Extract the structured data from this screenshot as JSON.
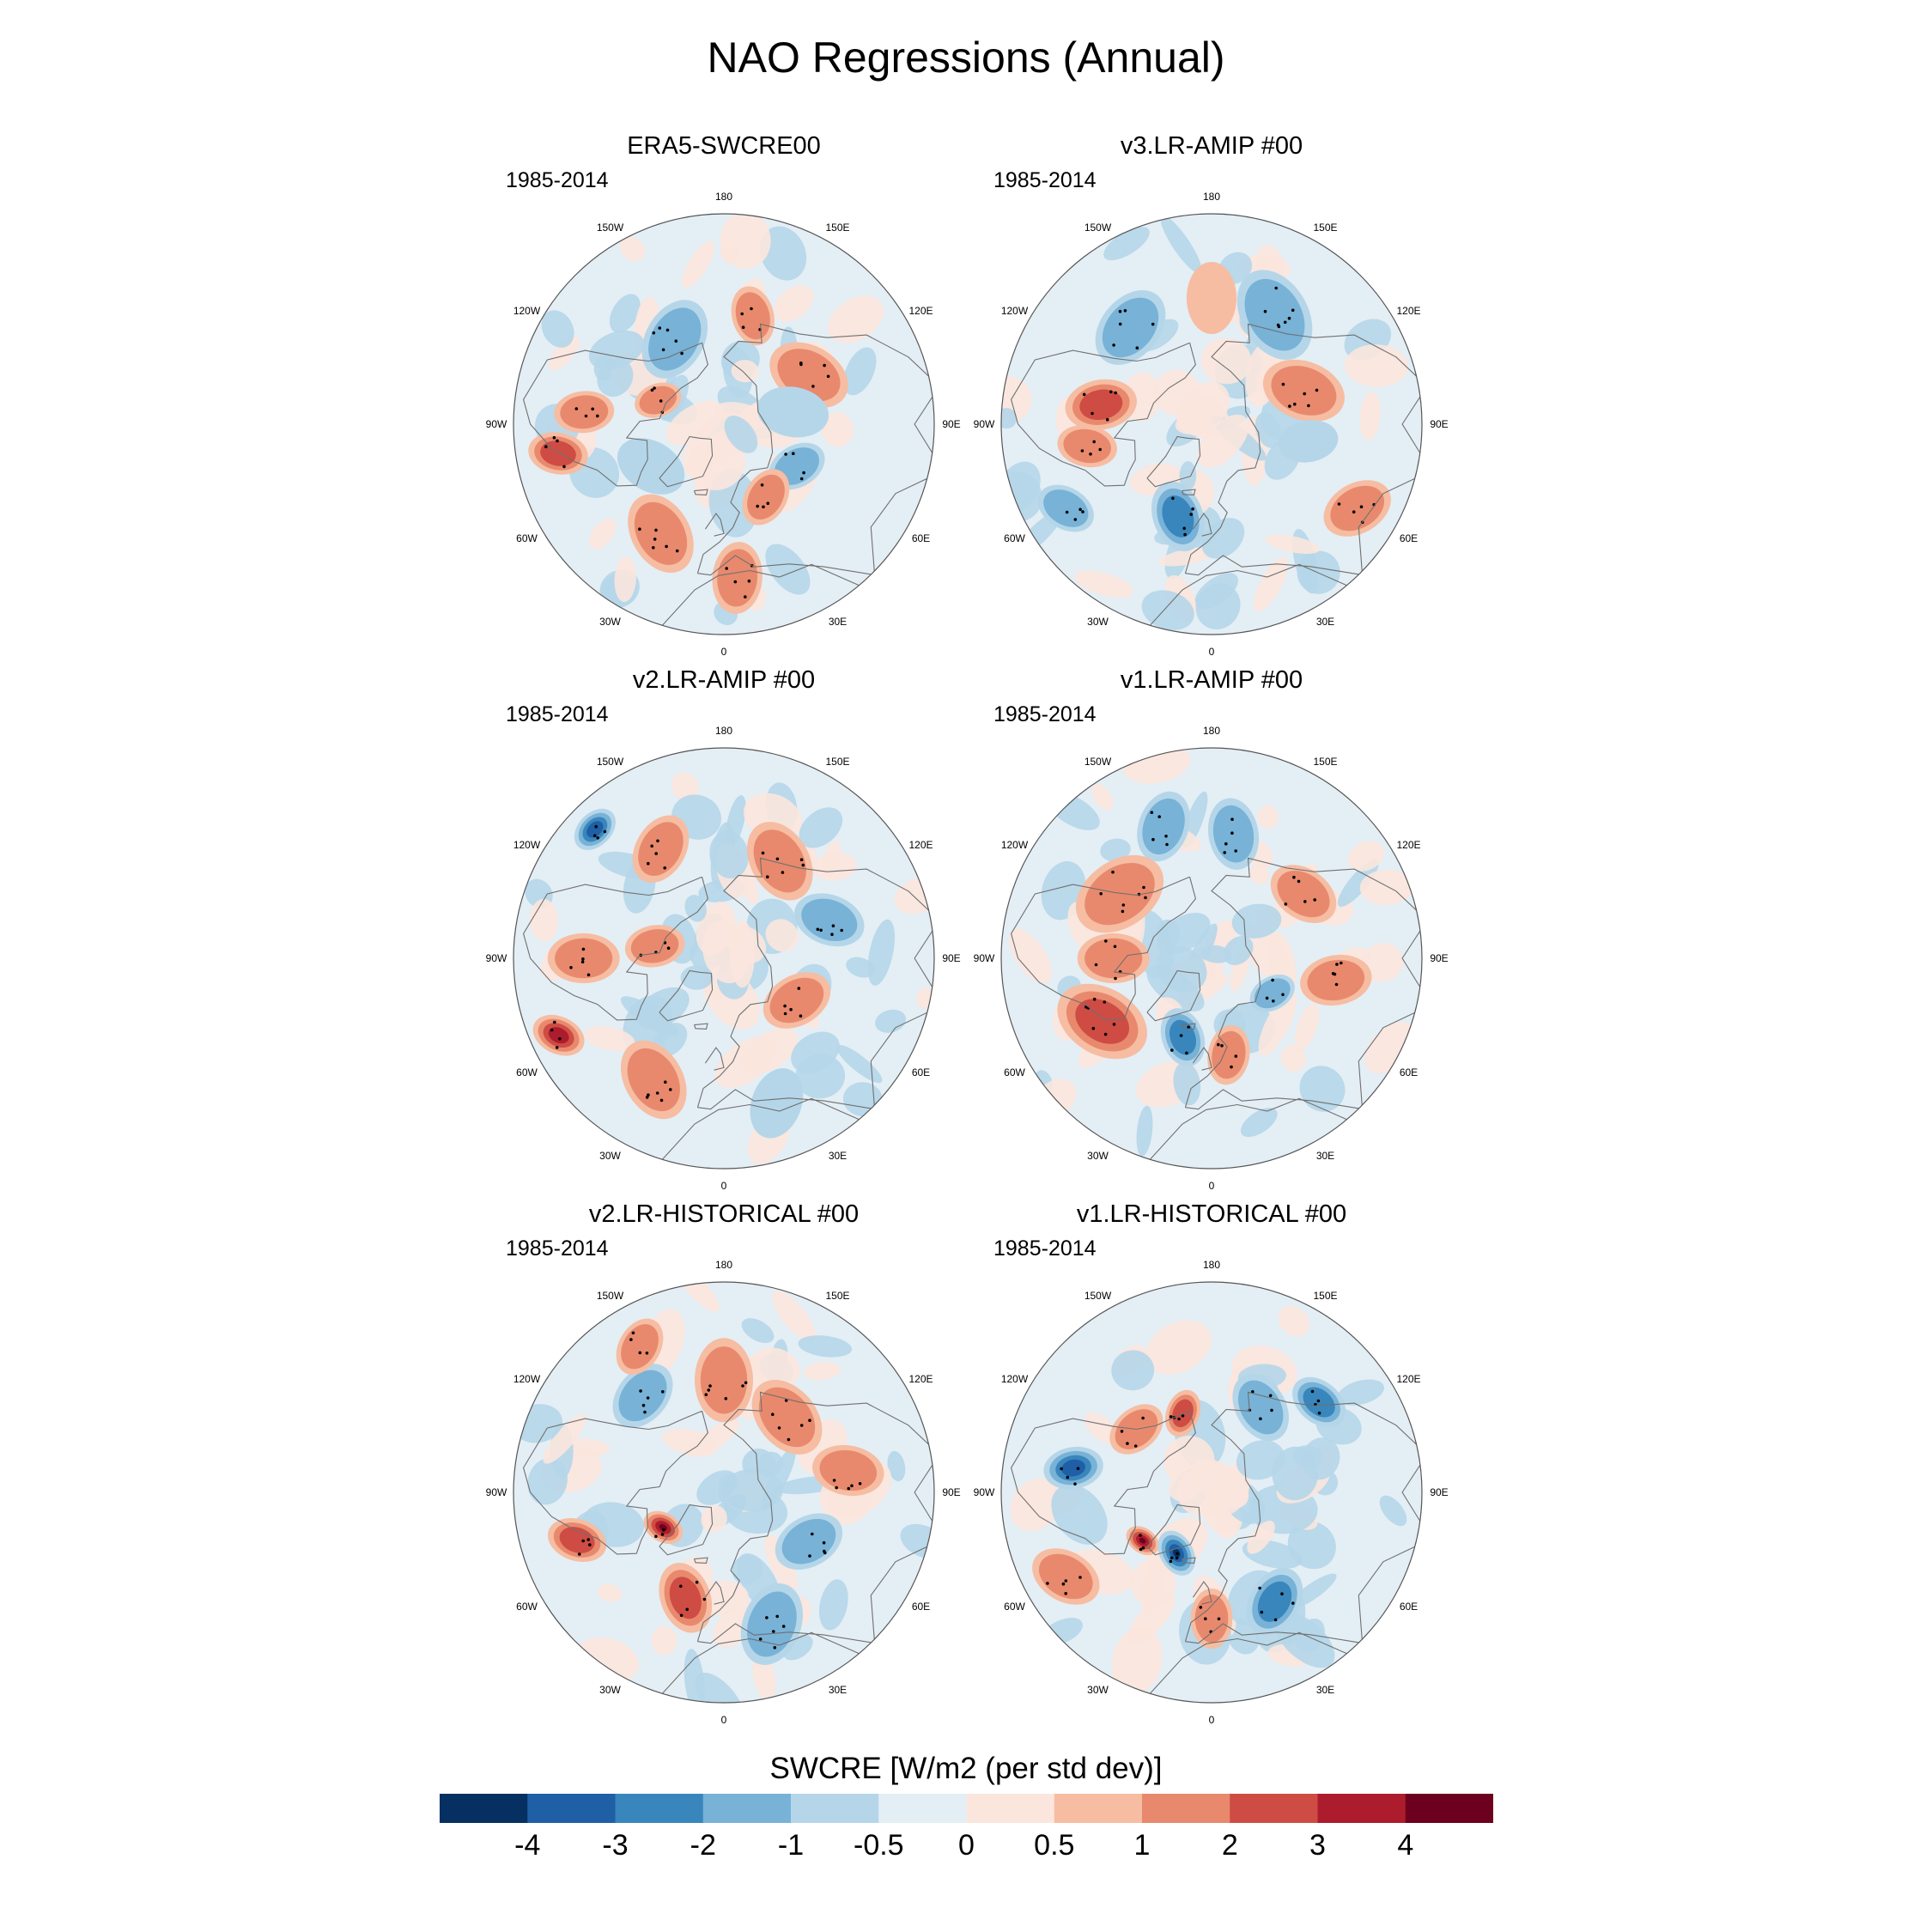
{
  "title": "NAO Regressions (Annual)",
  "colorbar": {
    "label": "SWCRE [W/m2 (per std dev)]",
    "tick_labels": [
      "-4",
      "-3",
      "-2",
      "-1",
      "-0.5",
      "0",
      "0.5",
      "1",
      "2",
      "3",
      "4"
    ],
    "colors": [
      "#053061",
      "#1f5fa6",
      "#3886bc",
      "#78b2d7",
      "#b5d6e9",
      "#e4eef5",
      "#fbe6de",
      "#f6bda2",
      "#e8896d",
      "#ce4c44",
      "#ad1c2c",
      "#6e001f"
    ]
  },
  "chart_data": [
    {
      "type": "heatmap",
      "projection": "polar-stereographic",
      "title": "ERA5-SWCRE00",
      "period": "1985-2014",
      "lon_labels": [
        "180",
        "150E",
        "120E",
        "90E",
        "60E",
        "30E",
        "0",
        "30W",
        "60W",
        "90W",
        "120W",
        "150W"
      ],
      "anomalies": [
        {
          "lon": 165,
          "lat": 50,
          "value": 1.5,
          "size": 10
        },
        {
          "lon": -150,
          "lat": 55,
          "value": -1.0,
          "size": 14
        },
        {
          "lon": -95,
          "lat": 40,
          "value": 1.5,
          "size": 10
        },
        {
          "lon": -80,
          "lat": 30,
          "value": 2.0,
          "size": 10
        },
        {
          "lon": -30,
          "lat": 45,
          "value": 1.5,
          "size": 14
        },
        {
          "lon": 5,
          "lat": 35,
          "value": 1.0,
          "size": 12
        },
        {
          "lon": 60,
          "lat": 60,
          "value": -1.0,
          "size": 10
        },
        {
          "lon": 120,
          "lat": 55,
          "value": 1.0,
          "size": 14
        },
        {
          "lon": -110,
          "lat": 65,
          "value": 1.0,
          "size": 8
        },
        {
          "lon": 100,
          "lat": 65,
          "value": -0.5,
          "size": 12
        },
        {
          "lon": 30,
          "lat": 60,
          "value": 1.0,
          "size": 10
        },
        {
          "lon": -60,
          "lat": 60,
          "value": -0.5,
          "size": 12
        }
      ]
    },
    {
      "type": "heatmap",
      "projection": "polar-stereographic",
      "title": "v3.LR-AMIP  #00",
      "period": "1985-2014",
      "lon_labels": [
        "180",
        "150E",
        "120E",
        "90E",
        "60E",
        "30E",
        "0",
        "30W",
        "60W",
        "90W",
        "120W",
        "150W"
      ],
      "anomalies": [
        {
          "lon": -100,
          "lat": 50,
          "value": 2.0,
          "size": 12
        },
        {
          "lon": -80,
          "lat": 45,
          "value": 1.0,
          "size": 10
        },
        {
          "lon": -20,
          "lat": 55,
          "value": -2.0,
          "size": 12
        },
        {
          "lon": 60,
          "lat": 30,
          "value": 1.5,
          "size": 12
        },
        {
          "lon": 150,
          "lat": 45,
          "value": -1.0,
          "size": 16
        },
        {
          "lon": -140,
          "lat": 45,
          "value": -1.0,
          "size": 14
        },
        {
          "lon": 110,
          "lat": 55,
          "value": 1.0,
          "size": 14
        },
        {
          "lon": -60,
          "lat": 30,
          "value": -1.0,
          "size": 10
        },
        {
          "lon": 80,
          "lat": 55,
          "value": -0.5,
          "size": 10
        },
        {
          "lon": 180,
          "lat": 45,
          "value": 0.5,
          "size": 12
        }
      ]
    },
    {
      "type": "heatmap",
      "projection": "polar-stereographic",
      "title": "v2.LR-AMIP  #00",
      "period": "1985-2014",
      "lon_labels": [
        "180",
        "150E",
        "120E",
        "90E",
        "60E",
        "30E",
        "0",
        "30W",
        "60W",
        "90W",
        "120W",
        "150W"
      ],
      "anomalies": [
        {
          "lon": -135,
          "lat": 25,
          "value": -3.0,
          "size": 8
        },
        {
          "lon": -65,
          "lat": 25,
          "value": 3.0,
          "size": 9
        },
        {
          "lon": -90,
          "lat": 40,
          "value": 1.5,
          "size": 12
        },
        {
          "lon": -30,
          "lat": 40,
          "value": 1.5,
          "size": 14
        },
        {
          "lon": 20,
          "lat": 35,
          "value": -0.5,
          "size": 12
        },
        {
          "lon": 60,
          "lat": 60,
          "value": 1.5,
          "size": 12
        },
        {
          "lon": 150,
          "lat": 50,
          "value": 1.0,
          "size": 14
        },
        {
          "lon": -150,
          "lat": 45,
          "value": 1.0,
          "size": 12
        },
        {
          "lon": 110,
          "lat": 50,
          "value": -1.0,
          "size": 12
        },
        {
          "lon": -100,
          "lat": 65,
          "value": 1.0,
          "size": 10
        }
      ]
    },
    {
      "type": "heatmap",
      "projection": "polar-stereographic",
      "title": "v1.LR-AMIP  #00",
      "period": "1985-2014",
      "lon_labels": [
        "180",
        "150E",
        "120E",
        "90E",
        "60E",
        "30E",
        "0",
        "30W",
        "60W",
        "90W",
        "120W",
        "150W"
      ],
      "anomalies": [
        {
          "lon": -60,
          "lat": 45,
          "value": 2.0,
          "size": 16
        },
        {
          "lon": -20,
          "lat": 60,
          "value": -2.0,
          "size": 10
        },
        {
          "lon": 10,
          "lat": 55,
          "value": 1.0,
          "size": 10
        },
        {
          "lon": 125,
          "lat": 50,
          "value": 1.5,
          "size": 12
        },
        {
          "lon": -160,
          "lat": 40,
          "value": -1.5,
          "size": 12
        },
        {
          "lon": -125,
          "lat": 50,
          "value": 1.0,
          "size": 16
        },
        {
          "lon": 80,
          "lat": 45,
          "value": 1.0,
          "size": 12
        },
        {
          "lon": 170,
          "lat": 45,
          "value": -1.0,
          "size": 12
        },
        {
          "lon": 60,
          "lat": 65,
          "value": -1.0,
          "size": 8
        },
        {
          "lon": -90,
          "lat": 55,
          "value": 1.0,
          "size": 12
        }
      ]
    },
    {
      "type": "heatmap",
      "projection": "polar-stereographic",
      "title": "v2.LR-HISTORICAL  #00",
      "period": "1985-2014",
      "lon_labels": [
        "180",
        "150E",
        "120E",
        "90E",
        "60E",
        "30E",
        "0",
        "30W",
        "60W",
        "90W",
        "120W",
        "150W"
      ],
      "anomalies": [
        {
          "lon": -60,
          "lat": 65,
          "value": 4.0,
          "size": 7
        },
        {
          "lon": -72,
          "lat": 35,
          "value": 2.5,
          "size": 10
        },
        {
          "lon": -20,
          "lat": 50,
          "value": 2.0,
          "size": 12
        },
        {
          "lon": 20,
          "lat": 40,
          "value": -1.5,
          "size": 14
        },
        {
          "lon": 180,
          "lat": 50,
          "value": 1.5,
          "size": 14
        },
        {
          "lon": -140,
          "lat": 45,
          "value": -1.5,
          "size": 12
        },
        {
          "lon": 140,
          "lat": 55,
          "value": 1.0,
          "size": 14
        },
        {
          "lon": 60,
          "lat": 55,
          "value": -1.0,
          "size": 12
        },
        {
          "lon": -150,
          "lat": 30,
          "value": 1.0,
          "size": 10
        },
        {
          "lon": 100,
          "lat": 45,
          "value": 1.0,
          "size": 12
        }
      ]
    },
    {
      "type": "heatmap",
      "projection": "polar-stereographic",
      "title": "v1.LR-HISTORICAL  #00",
      "period": "1985-2014",
      "lon_labels": [
        "180",
        "150E",
        "120E",
        "90E",
        "60E",
        "30E",
        "0",
        "30W",
        "60W",
        "90W",
        "120W",
        "150W"
      ],
      "anomalies": [
        {
          "lon": -100,
          "lat": 40,
          "value": -3.0,
          "size": 10
        },
        {
          "lon": -55,
          "lat": 60,
          "value": 4.0,
          "size": 6
        },
        {
          "lon": -30,
          "lat": 65,
          "value": -4.0,
          "size": 8
        },
        {
          "lon": 30,
          "lat": 45,
          "value": -2.0,
          "size": 12
        },
        {
          "lon": 130,
          "lat": 40,
          "value": -2.0,
          "size": 10
        },
        {
          "lon": -160,
          "lat": 60,
          "value": 2.0,
          "size": 8
        },
        {
          "lon": -60,
          "lat": 30,
          "value": 1.5,
          "size": 12
        },
        {
          "lon": 150,
          "lat": 55,
          "value": -1.0,
          "size": 12
        },
        {
          "lon": -130,
          "lat": 55,
          "value": 1.0,
          "size": 10
        },
        {
          "lon": 0,
          "lat": 45,
          "value": 1.0,
          "size": 10
        }
      ]
    }
  ]
}
